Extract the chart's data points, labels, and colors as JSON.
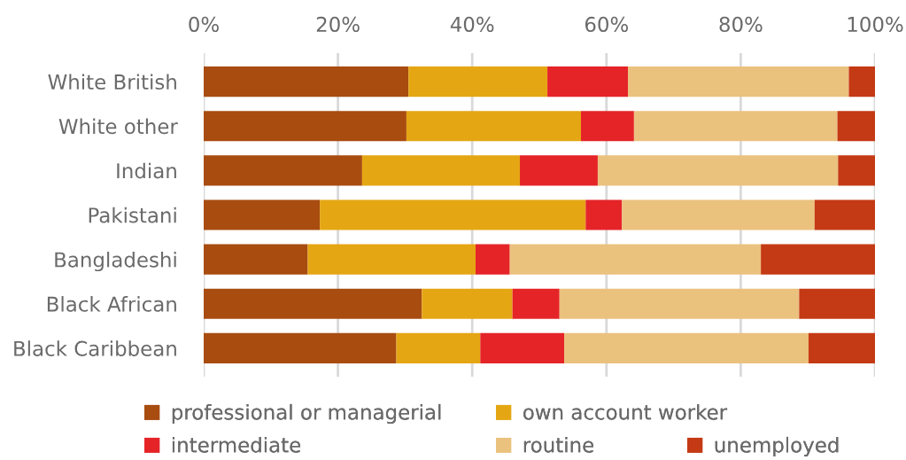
{
  "chart_data": {
    "type": "bar",
    "orientation": "horizontal",
    "stacked": true,
    "categories": [
      "White British",
      "White other",
      "Indian",
      "Pakistani",
      "Bangladeshi",
      "Black African",
      "Black Caribbean"
    ],
    "series": [
      {
        "name": "professional or managerial",
        "color": "#a84c10",
        "values": [
          30.5,
          30.2,
          23.6,
          17.3,
          15.5,
          32.5,
          28.7
        ]
      },
      {
        "name": "own account worker",
        "color": "#e5a614",
        "values": [
          20.7,
          26.0,
          23.5,
          39.6,
          25.0,
          13.5,
          12.5
        ]
      },
      {
        "name": "intermediate",
        "color": "#e52428",
        "values": [
          12.0,
          7.9,
          11.6,
          5.4,
          5.1,
          7.0,
          12.5
        ]
      },
      {
        "name": "routine",
        "color": "#ebc17e",
        "values": [
          32.9,
          30.3,
          35.8,
          28.7,
          37.4,
          35.7,
          36.4
        ]
      },
      {
        "name": "unemployed",
        "color": "#c43a14",
        "values": [
          3.9,
          5.6,
          5.5,
          9.0,
          17.0,
          11.3,
          9.9
        ]
      }
    ],
    "xlim": [
      0,
      100
    ],
    "xticks": [
      {
        "value": 0,
        "label": "0%"
      },
      {
        "value": 20,
        "label": "20%"
      },
      {
        "value": 40,
        "label": "40%"
      },
      {
        "value": 60,
        "label": "60%"
      },
      {
        "value": 80,
        "label": "80%"
      },
      {
        "value": 100,
        "label": "100%"
      }
    ],
    "grid": "x",
    "legend": "bottom"
  }
}
